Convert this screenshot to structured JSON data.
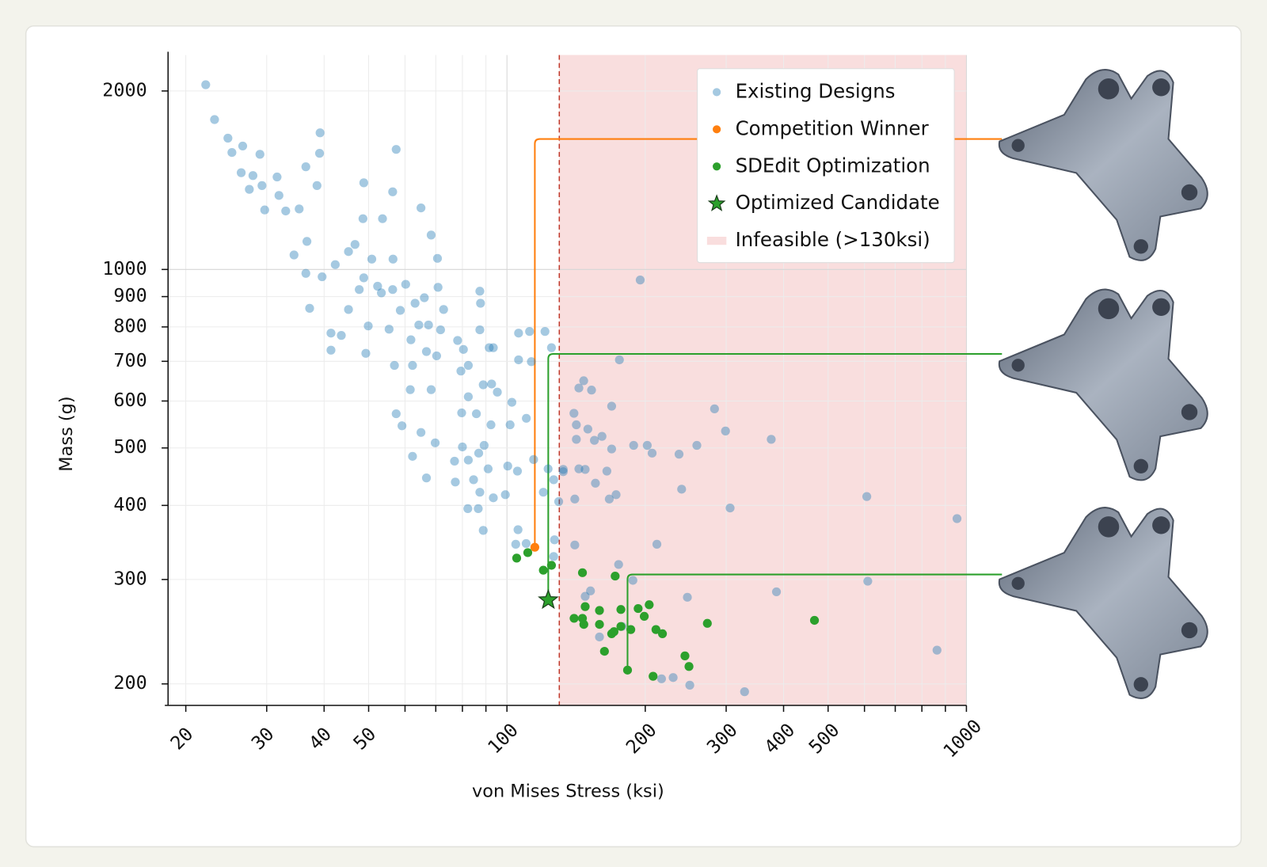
{
  "chart_data": {
    "type": "scatter",
    "x_label": "von Mises Stress (ksi)",
    "y_label": "Mass (g)",
    "xscale": "log",
    "yscale": "log",
    "xlim": [
      18.3,
      1000
    ],
    "ylim": [
      184,
      2300
    ],
    "xticks": [
      20,
      30,
      40,
      50,
      100,
      200,
      300,
      400,
      500,
      1000
    ],
    "xminorticks": [
      60,
      70,
      80,
      90,
      600,
      700,
      800,
      900
    ],
    "yticks": [
      200,
      300,
      400,
      500,
      600,
      700,
      800,
      900,
      1000,
      2000
    ],
    "grid": true,
    "legend": "upper right",
    "infeasible": {
      "name": "Infeasible (>130ksi)",
      "threshold": 130,
      "color": "#f9dede",
      "line_color": "#c0392b"
    },
    "series": [
      {
        "name": "Existing Designs",
        "color": "#1f77b4",
        "alpha": 0.4,
        "marker": "circle",
        "x": [
          22.1,
          23.1,
          24.7,
          25.2,
          26.6,
          29,
          26.4,
          28,
          27.5,
          29.3,
          31.6,
          31.9,
          29.7,
          33,
          35.3,
          36.5,
          39.1,
          39.2,
          38.6,
          36.7,
          34.4,
          36.5,
          37.2,
          39.6,
          41.4,
          41.4,
          42.3,
          45.2,
          46.7,
          48.8,
          48.6,
          50.8,
          48.8,
          52.3,
          47.7,
          45.2,
          43.6,
          49.3,
          49.9,
          53.6,
          56.4,
          56.5,
          56.4,
          53.3,
          58.6,
          55.4,
          57.4,
          65,
          68.4,
          70.6,
          60.2,
          63.1,
          66.1,
          70.8,
          72.8,
          64.3,
          67.5,
          71.7,
          61.8,
          66.8,
          70.3,
          56.9,
          62.3,
          61.6,
          68.4,
          57.4,
          59.1,
          65,
          69.8,
          62.3,
          66.8,
          78.1,
          80.4,
          87.3,
          87.3,
          87.6,
          79.4,
          82.4,
          91.5,
          93.4,
          106,
          112,
          121,
          125,
          106,
          113,
          82.4,
          88.8,
          92.6,
          95.3,
          102.5,
          79.7,
          85.8,
          92.3,
          101.6,
          110.2,
          80,
          89.2,
          86.8,
          76.9,
          82.4,
          91,
          100.4,
          105.4,
          114.3,
          77.2,
          84.6,
          87.3,
          93.4,
          99.2,
          82.2,
          86.6,
          88.8,
          105.7,
          104.5,
          110.1,
          120,
          126.4,
          122.9,
          126.9,
          126.4,
          129.6,
          139.9,
          141.6,
          141.6,
          150,
          155,
          161,
          169,
          143.4,
          148,
          165,
          155.8,
          167,
          172.8,
          132.6,
          140.5,
          132.6,
          143.4,
          146.9,
          152.8,
          169,
          188.7,
          202,
          207,
          236.9,
          259,
          283,
          299,
          376,
          240,
          306,
          212,
          175,
          188,
          148,
          152,
          175.7,
          195,
          607,
          954,
          610,
          386,
          247,
          863,
          329,
          250,
          217,
          230,
          178,
          159,
          140.5
        ],
        "y": [
          2049,
          1790,
          1665,
          1575,
          1615,
          1564,
          1456,
          1440,
          1365,
          1385,
          1432,
          1333,
          1260,
          1255,
          1265,
          1490,
          1570,
          1700,
          1385,
          1115,
          1058,
          985,
          860,
          972,
          781,
          731,
          1019,
          1072,
          1102,
          1400,
          1218,
          1041,
          968,
          937,
          925,
          856,
          774,
          722,
          803,
          1218,
          1352,
          1041,
          925,
          913,
          853,
          793,
          1594,
          1270,
          1143,
          1044,
          944,
          877,
          896,
          933,
          856,
          806,
          806,
          791,
          761,
          727,
          715,
          689,
          689,
          627,
          627,
          571,
          545,
          531,
          510,
          484,
          445,
          759,
          733,
          791,
          919,
          877,
          674,
          689,
          738,
          738,
          781,
          786,
          786,
          738,
          704,
          699,
          610,
          639,
          641,
          621,
          597,
          573,
          571,
          547,
          547,
          561,
          502,
          505,
          490,
          475,
          477,
          461,
          466,
          457,
          478,
          438,
          442,
          421,
          412,
          417,
          395,
          395,
          363,
          364,
          344,
          345,
          421,
          442,
          461,
          350,
          328,
          406,
          572,
          547,
          517,
          538,
          515,
          523,
          498,
          461,
          460,
          457,
          436,
          410,
          417,
          456,
          410,
          460,
          631,
          649,
          626,
          588,
          505,
          505,
          490,
          488,
          505,
          582,
          534,
          517,
          426,
          396,
          344,
          318,
          299,
          281,
          287,
          704,
          960,
          414,
          380,
          298,
          286,
          280,
          228,
          194,
          199,
          204,
          205,
          250,
          240,
          343
        ]
      },
      {
        "name": "Competition Winner",
        "color": "#ff7f0e",
        "alpha": 1,
        "marker": "circle",
        "x": [
          115
        ],
        "y": [
          340
        ]
      },
      {
        "name": "SDEdit Optimization",
        "color": "#2ca02c",
        "alpha": 1,
        "marker": "circle",
        "x": [
          105,
          111,
          120,
          125,
          146,
          172,
          140,
          146,
          148,
          159,
          159,
          147,
          177,
          193,
          204,
          199,
          171,
          169,
          177,
          186,
          211,
          218,
          273,
          467,
          163,
          244,
          249,
          183,
          208
        ],
        "y": [
          326,
          333,
          311,
          317,
          308,
          304,
          258,
          258,
          270,
          266,
          252,
          252,
          267,
          268,
          272,
          260,
          245,
          243,
          250,
          247,
          247,
          243,
          253,
          256,
          227,
          223,
          214,
          211,
          206
        ]
      },
      {
        "name": "Optimized Candidate",
        "color": "#2ca02c",
        "alpha": 1,
        "marker": "star",
        "x": [
          123
        ],
        "y": [
          277
        ]
      }
    ]
  }
}
